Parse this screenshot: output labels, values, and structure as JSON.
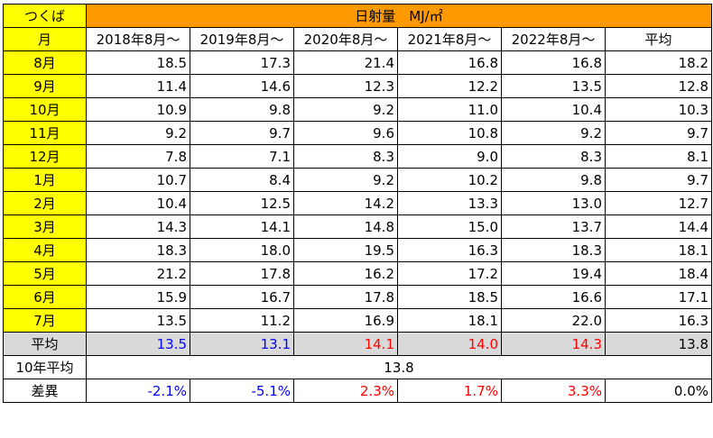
{
  "sheet": {
    "location": "つくば",
    "title": "日射量　MJ/㎡",
    "header": {
      "month_label": "月",
      "columns": [
        "2018年8月～",
        "2019年8月～",
        "2020年8月～",
        "2021年8月～",
        "2022年8月～",
        "平均"
      ]
    },
    "rows": [
      {
        "month": "8月",
        "values": [
          "18.5",
          "17.3",
          "21.4",
          "16.8",
          "16.8",
          "18.2"
        ]
      },
      {
        "month": "9月",
        "values": [
          "11.4",
          "14.6",
          "12.3",
          "12.2",
          "13.5",
          "12.8"
        ]
      },
      {
        "month": "10月",
        "values": [
          "10.9",
          "9.8",
          "9.2",
          "11.0",
          "10.4",
          "10.3"
        ]
      },
      {
        "month": "11月",
        "values": [
          "9.2",
          "9.7",
          "9.6",
          "10.8",
          "9.2",
          "9.7"
        ]
      },
      {
        "month": "12月",
        "values": [
          "7.8",
          "7.1",
          "8.3",
          "9.0",
          "8.3",
          "8.1"
        ]
      },
      {
        "month": "1月",
        "values": [
          "10.7",
          "8.4",
          "9.2",
          "10.2",
          "9.8",
          "9.7"
        ]
      },
      {
        "month": "2月",
        "values": [
          "10.4",
          "12.5",
          "14.2",
          "13.3",
          "13.0",
          "12.7"
        ]
      },
      {
        "month": "3月",
        "values": [
          "14.3",
          "14.1",
          "14.8",
          "15.0",
          "13.7",
          "14.4"
        ]
      },
      {
        "month": "4月",
        "values": [
          "18.3",
          "18.0",
          "19.5",
          "16.3",
          "18.3",
          "18.1"
        ]
      },
      {
        "month": "5月",
        "values": [
          "21.2",
          "17.8",
          "16.2",
          "17.2",
          "19.4",
          "18.4"
        ]
      },
      {
        "month": "6月",
        "values": [
          "15.9",
          "16.7",
          "17.8",
          "18.5",
          "16.6",
          "17.1"
        ]
      },
      {
        "month": "7月",
        "values": [
          "13.5",
          "11.2",
          "16.9",
          "18.1",
          "22.0",
          "16.3"
        ]
      }
    ],
    "average": {
      "label": "平均",
      "values": [
        "13.5",
        "13.1",
        "14.1",
        "14.0",
        "14.3",
        "13.8"
      ]
    },
    "ten_year": {
      "label": "10年平均",
      "value": "13.8"
    },
    "difference": {
      "label": "差異",
      "values": [
        "-2.1%",
        "-5.1%",
        "2.3%",
        "1.7%",
        "3.3%",
        "0.0%"
      ]
    },
    "colors": {
      "header_orange": "#ff9900",
      "month_yellow": "#ffff00",
      "average_gray": "#d9d9d9",
      "below_avg_blue": "#0000ff",
      "above_avg_red": "#ff0000"
    }
  }
}
